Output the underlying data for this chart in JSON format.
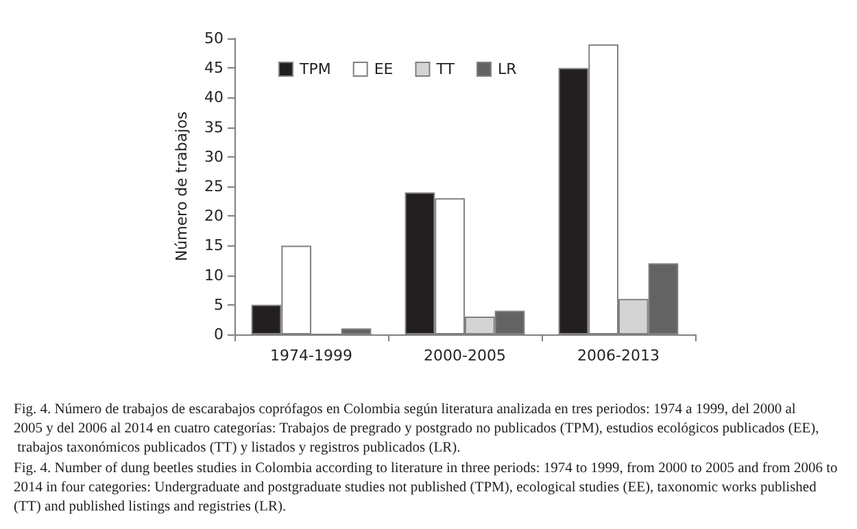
{
  "chart_data": {
    "type": "bar",
    "ylabel": "Número de trabajos",
    "categories": [
      "1974-1999",
      "2000-2005",
      "2006-2013"
    ],
    "series": [
      {
        "name": "TPM",
        "color": "#231f20",
        "values": [
          5,
          24,
          45
        ]
      },
      {
        "name": "EE",
        "color": "#ffffff",
        "values": [
          15,
          23,
          49
        ]
      },
      {
        "name": "TT",
        "color": "#d4d4d4",
        "values": [
          0,
          3,
          6
        ]
      },
      {
        "name": "LR",
        "color": "#636363",
        "values": [
          1,
          4,
          12
        ]
      }
    ],
    "ylim": [
      0,
      50
    ],
    "yticks": [
      0,
      5,
      10,
      15,
      20,
      25,
      30,
      35,
      40,
      45,
      50
    ],
    "grid": false,
    "legend": "top left",
    "annotations": [
      "Fig. 4. Número de trabajos de escarabajos coprófagos en Colombia según literatura analizada en tres periodos: 1974 a 1999, del 2000 al 2005 y del 2006 al 2014 en cuatro categorías: Trabajos de pregrado y postgrado no publicados (TPM), estudios ecológicos publicados (EE), trabajos taxonómicos publicados (TT) y listados y registros publicados (LR).",
      "Fig. 4. Number of dung beetles studies in Colombia according to literature in three periods: 1974 to 1999, from 2000 to 2005 and from 2006 to 2014 in four categories: Undergraduate and postgraduate studies not published (TPM), ecological studies (EE), taxonomic works published (TT) and published listings and registries (LR)."
    ]
  }
}
